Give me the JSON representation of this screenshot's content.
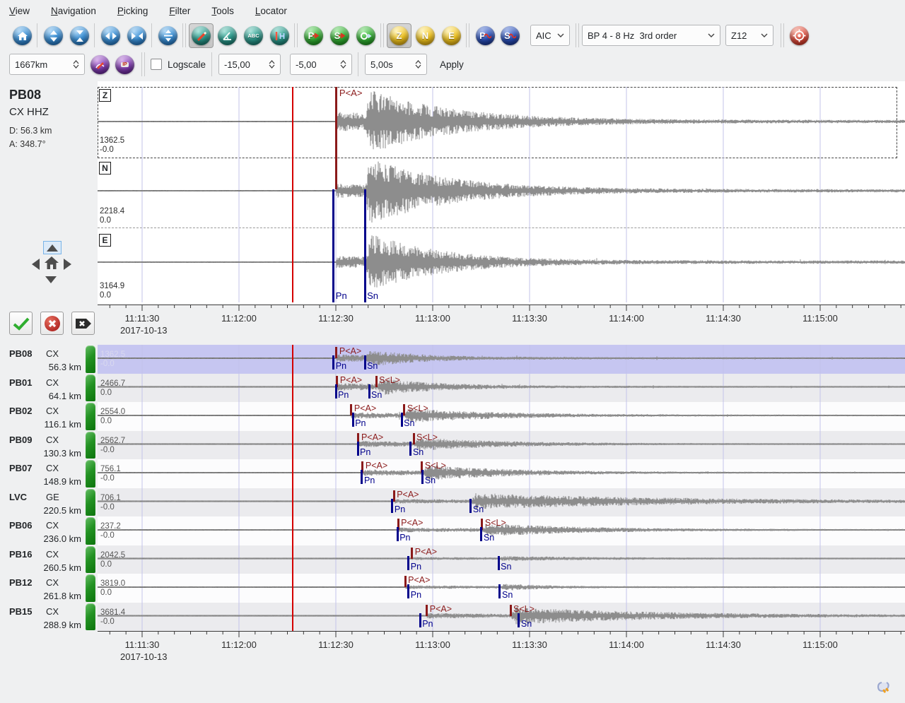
{
  "menu": {
    "items": [
      "View",
      "Navigation",
      "Picking",
      "Filter",
      "Tools",
      "Locator"
    ]
  },
  "toolbar": {
    "pick_mode": "AIC",
    "filter": "BP 4 - 8 Hz  3rd order",
    "rotation": "Z12",
    "components": [
      "Z",
      "N",
      "E"
    ],
    "glyph_p": "P",
    "glyph_s": "S",
    "glyph_abc": "ABC",
    "glyph_ip": "IP",
    "amplitude_range": "1667km",
    "logscale_label": "Logscale",
    "spin_left": "-15,00",
    "spin_right": "-5,00",
    "spin_step": "5,00s",
    "apply_label": "Apply"
  },
  "selected_station": {
    "code": "PB08",
    "network": "CX",
    "channel": "HHZ",
    "distance_label": "D:  56.3 km",
    "azimuth_label": "A:  348.7°"
  },
  "axis": {
    "labels": [
      "11:11:30",
      "11:12:00",
      "11:12:30",
      "11:13:00",
      "11:13:30",
      "11:14:00",
      "11:14:30",
      "11:15:00"
    ],
    "date": "2017-10-13",
    "step_s": 30
  },
  "origin_time_s": 46.4,
  "top_panel": {
    "components": [
      {
        "label": "Z",
        "amp_max": "1362.5",
        "amp_min": "-0.0",
        "wf": {
          "pA": 12,
          "sA": 46,
          "sTau": 26,
          "max": 48,
          "seed": 11
        }
      },
      {
        "label": "N",
        "amp_max": "2218.4",
        "amp_min": "0.0",
        "wf": {
          "pA": 8,
          "sA": 50,
          "sTau": 24,
          "max": 49,
          "seed": 22
        }
      },
      {
        "label": "E",
        "amp_max": "3164.9",
        "amp_min": "0.0",
        "wf": {
          "pA": 7,
          "sA": 42,
          "sTau": 22,
          "max": 44,
          "seed": 33
        }
      }
    ],
    "tP": 60.2,
    "tS": 69.0,
    "picks": [
      {
        "label": "P<A>",
        "t": 60.2,
        "kind": "auto",
        "span": "upper"
      },
      {
        "label": "Pn",
        "t": 59.3,
        "kind": "theo",
        "span": "lower"
      },
      {
        "label": "Sn",
        "t": 69.0,
        "kind": "theo",
        "span": "lower"
      }
    ]
  },
  "stations": [
    {
      "code": "PB08",
      "net": "CX",
      "dist": "56.3 km",
      "amp_max": "1362.5",
      "amp_min": "-0.0",
      "selected": true,
      "picks": [
        {
          "label": "P<A>",
          "t": 60.2,
          "kind": "auto"
        },
        {
          "label": "Pn",
          "t": 59.3,
          "kind": "theo"
        },
        {
          "label": "Sn",
          "t": 69.0,
          "kind": "theo"
        }
      ],
      "wf": {
        "tP": 60.2,
        "tS": 69.0,
        "pA": 4.5,
        "sA": 12,
        "sTau": 18,
        "seed": 101
      }
    },
    {
      "code": "PB01",
      "net": "CX",
      "dist": "64.1 km",
      "amp_max": "2466.7",
      "amp_min": "0.0",
      "selected": false,
      "picks": [
        {
          "label": "P<A>",
          "t": 60.4,
          "kind": "auto"
        },
        {
          "label": "S<L>",
          "t": 72.5,
          "kind": "auto"
        },
        {
          "label": "Pn",
          "t": 60.0,
          "kind": "theo"
        },
        {
          "label": "Sn",
          "t": 70.3,
          "kind": "theo"
        }
      ],
      "wf": {
        "tP": 60.4,
        "tS": 72.5,
        "pA": 4.5,
        "sA": 12,
        "sTau": 20,
        "seed": 102
      }
    },
    {
      "code": "PB02",
      "net": "CX",
      "dist": "116.1 km",
      "amp_max": "2554.0",
      "amp_min": "0.0",
      "selected": false,
      "picks": [
        {
          "label": "P<A>",
          "t": 64.8,
          "kind": "auto"
        },
        {
          "label": "S<L>",
          "t": 81.2,
          "kind": "auto"
        },
        {
          "label": "Pn",
          "t": 65.3,
          "kind": "theo"
        },
        {
          "label": "Sn",
          "t": 80.4,
          "kind": "theo"
        }
      ],
      "wf": {
        "tP": 64.8,
        "tS": 81.2,
        "pA": 3.5,
        "sA": 10,
        "sTau": 28,
        "seed": 103
      }
    },
    {
      "code": "PB09",
      "net": "CX",
      "dist": "130.3 km",
      "amp_max": "2562.7",
      "amp_min": "-0.0",
      "selected": false,
      "picks": [
        {
          "label": "P<A>",
          "t": 67.0,
          "kind": "auto"
        },
        {
          "label": "S<L>",
          "t": 84.1,
          "kind": "auto"
        },
        {
          "label": "Pn",
          "t": 66.8,
          "kind": "theo"
        },
        {
          "label": "Sn",
          "t": 83.2,
          "kind": "theo"
        }
      ],
      "wf": {
        "tP": 67.0,
        "tS": 84.1,
        "pA": 3.5,
        "sA": 9,
        "sTau": 26,
        "seed": 104
      }
    },
    {
      "code": "PB07",
      "net": "CX",
      "dist": "148.9 km",
      "amp_max": "756.1",
      "amp_min": "-0.0",
      "selected": false,
      "picks": [
        {
          "label": "P<A>",
          "t": 68.3,
          "kind": "auto"
        },
        {
          "label": "S<L>",
          "t": 86.7,
          "kind": "auto"
        },
        {
          "label": "Pn",
          "t": 68.1,
          "kind": "theo"
        },
        {
          "label": "Sn",
          "t": 86.9,
          "kind": "theo"
        }
      ],
      "wf": {
        "tP": 68.3,
        "tS": 86.7,
        "pA": 3.5,
        "sA": 11,
        "sTau": 26,
        "seed": 105
      }
    },
    {
      "code": "LVC",
      "net": "GE",
      "dist": "220.5 km",
      "amp_max": "706.1",
      "amp_min": "-0.0",
      "selected": false,
      "picks": [
        {
          "label": "P<A>",
          "t": 78.0,
          "kind": "auto"
        },
        {
          "label": "Pn",
          "t": 77.5,
          "kind": "theo"
        },
        {
          "label": "Sn",
          "t": 101.8,
          "kind": "theo"
        }
      ],
      "wf": {
        "tP": 78.0,
        "tS": 101.8,
        "pA": 2.5,
        "sA": 11,
        "sTau": 60,
        "seed": 106
      }
    },
    {
      "code": "PB06",
      "net": "CX",
      "dist": "236.0 km",
      "amp_max": "237.2",
      "amp_min": "-0.0",
      "selected": false,
      "picks": [
        {
          "label": "P<A>",
          "t": 79.3,
          "kind": "auto"
        },
        {
          "label": "S<L>",
          "t": 105.3,
          "kind": "auto"
        },
        {
          "label": "Pn",
          "t": 79.1,
          "kind": "theo"
        },
        {
          "label": "Sn",
          "t": 105.1,
          "kind": "theo"
        }
      ],
      "wf": {
        "tP": 79.3,
        "tS": 105.3,
        "pA": 2.5,
        "sA": 9,
        "sTau": 30,
        "seed": 107
      }
    },
    {
      "code": "PB16",
      "net": "CX",
      "dist": "260.5 km",
      "amp_max": "2042.5",
      "amp_min": "0.0",
      "selected": false,
      "picks": [
        {
          "label": "P<A>",
          "t": 83.6,
          "kind": "auto"
        },
        {
          "label": "Pn",
          "t": 82.5,
          "kind": "theo"
        },
        {
          "label": "Sn",
          "t": 110.4,
          "kind": "theo"
        }
      ],
      "wf": {
        "tP": 83.6,
        "tS": 110.4,
        "pA": 1.2,
        "sA": 2.8,
        "sTau": 30,
        "seed": 108
      }
    },
    {
      "code": "PB12",
      "net": "CX",
      "dist": "261.8 km",
      "amp_max": "3819.0",
      "amp_min": "0.0",
      "selected": false,
      "picks": [
        {
          "label": "P<A>",
          "t": 81.5,
          "kind": "auto"
        },
        {
          "label": "Pn",
          "t": 82.5,
          "kind": "theo"
        },
        {
          "label": "Sn",
          "t": 110.8,
          "kind": "theo"
        }
      ],
      "wf": {
        "tP": 81.5,
        "tS": 110.8,
        "pA": 1.6,
        "sA": 4.5,
        "sTau": 14,
        "seed": 109
      }
    },
    {
      "code": "PB15",
      "net": "CX",
      "dist": "288.9 km",
      "amp_max": "3681.4",
      "amp_min": "-0.0",
      "selected": false,
      "picks": [
        {
          "label": "P<A>",
          "t": 88.2,
          "kind": "auto"
        },
        {
          "label": "S<L>",
          "t": 114.1,
          "kind": "auto"
        },
        {
          "label": "Pn",
          "t": 86.1,
          "kind": "theo"
        },
        {
          "label": "Sn",
          "t": 116.7,
          "kind": "theo"
        }
      ],
      "wf": {
        "tP": 88.2,
        "tS": 114.1,
        "pA": 3.0,
        "sA": 12,
        "sTau": 45,
        "seed": 110
      }
    }
  ]
}
